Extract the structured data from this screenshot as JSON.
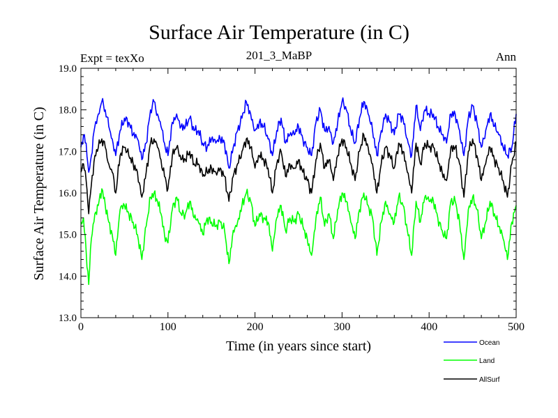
{
  "header": {
    "title": "Surface Air Temperature (in C)",
    "subtitle": "201_3_MaBP",
    "expt_label": "Expt = texXo",
    "season_label": "Ann"
  },
  "chart_data": {
    "type": "line",
    "title": "Surface Air Temperature (in C)",
    "xlabel": "Time (in years since start)",
    "ylabel": "Surface Air Temperature (in C)",
    "xlim": [
      0,
      500
    ],
    "ylim": [
      13.0,
      19.0
    ],
    "xticks": [
      0,
      100,
      200,
      300,
      400,
      500
    ],
    "yticks": [
      13.0,
      14.0,
      15.0,
      16.0,
      17.0,
      18.0,
      19.0
    ],
    "ytick_labels": [
      "13.0",
      "14.0",
      "15.0",
      "16.0",
      "17.0",
      "18.0",
      "19.0"
    ],
    "grid": false,
    "legend_position": "bottom-right",
    "series": [
      {
        "name": "Ocean",
        "color": "#0000ff",
        "x": [
          0,
          3,
          6,
          9,
          12,
          16,
          20,
          24,
          28,
          32,
          36,
          40,
          45,
          50,
          55,
          60,
          65,
          70,
          75,
          80,
          84,
          88,
          92,
          96,
          100,
          105,
          110,
          115,
          120,
          125,
          130,
          135,
          140,
          145,
          150,
          155,
          160,
          165,
          170,
          175,
          180,
          185,
          190,
          195,
          200,
          205,
          210,
          215,
          220,
          225,
          230,
          235,
          240,
          245,
          250,
          255,
          260,
          265,
          270,
          275,
          280,
          285,
          290,
          295,
          300,
          305,
          310,
          315,
          320,
          325,
          330,
          335,
          340,
          345,
          350,
          355,
          360,
          365,
          370,
          375,
          380,
          385,
          390,
          395,
          400,
          405,
          410,
          415,
          420,
          425,
          430,
          435,
          440,
          445,
          450,
          455,
          460,
          465,
          470,
          475,
          480,
          485,
          490,
          495,
          500
        ],
        "values": [
          17.1,
          17.4,
          17.2,
          16.5,
          16.9,
          17.6,
          17.9,
          18.2,
          18.0,
          17.6,
          17.3,
          16.9,
          17.5,
          17.8,
          17.7,
          17.4,
          17.3,
          16.8,
          17.2,
          18.0,
          18.2,
          17.9,
          17.6,
          17.2,
          16.9,
          17.7,
          17.9,
          17.6,
          17.6,
          17.8,
          17.5,
          17.5,
          17.2,
          17.1,
          17.3,
          17.2,
          17.3,
          17.2,
          16.6,
          17.1,
          17.5,
          17.8,
          18.2,
          17.9,
          17.5,
          17.7,
          17.6,
          17.3,
          16.9,
          17.5,
          17.8,
          17.2,
          17.4,
          17.4,
          17.6,
          17.3,
          17.1,
          16.9,
          17.7,
          18.0,
          17.5,
          17.6,
          17.2,
          17.7,
          18.2,
          18.0,
          17.5,
          17.2,
          17.8,
          18.2,
          17.9,
          17.5,
          16.9,
          17.5,
          17.9,
          17.7,
          17.4,
          17.9,
          17.8,
          17.3,
          16.9,
          18.1,
          17.5,
          18.0,
          17.9,
          17.9,
          17.6,
          17.4,
          17.2,
          17.9,
          17.9,
          17.5,
          16.9,
          17.8,
          18.1,
          17.7,
          17.1,
          17.5,
          17.9,
          17.6,
          17.4,
          17.1,
          16.9,
          17.1,
          17.9
        ]
      },
      {
        "name": "Land",
        "color": "#00ff00",
        "x": [
          0,
          3,
          6,
          9,
          12,
          16,
          20,
          24,
          28,
          32,
          36,
          40,
          45,
          50,
          55,
          60,
          65,
          70,
          75,
          80,
          84,
          88,
          92,
          96,
          100,
          105,
          110,
          115,
          120,
          125,
          130,
          135,
          140,
          145,
          150,
          155,
          160,
          165,
          170,
          175,
          180,
          185,
          190,
          195,
          200,
          205,
          210,
          215,
          220,
          225,
          230,
          235,
          240,
          245,
          250,
          255,
          260,
          265,
          270,
          275,
          280,
          285,
          290,
          295,
          300,
          305,
          310,
          315,
          320,
          325,
          330,
          335,
          340,
          345,
          350,
          355,
          360,
          365,
          370,
          375,
          380,
          385,
          390,
          395,
          400,
          405,
          410,
          415,
          420,
          425,
          430,
          435,
          440,
          445,
          450,
          455,
          460,
          465,
          470,
          475,
          480,
          485,
          490,
          495,
          500
        ],
        "values": [
          15.3,
          15.4,
          14.6,
          13.8,
          14.9,
          15.5,
          15.7,
          16.1,
          15.7,
          15.3,
          15.0,
          14.5,
          15.6,
          15.7,
          15.5,
          15.3,
          15.0,
          14.4,
          15.2,
          15.9,
          16.0,
          15.8,
          15.5,
          15.0,
          14.8,
          15.6,
          15.9,
          15.5,
          15.5,
          15.8,
          15.4,
          15.3,
          15.0,
          15.4,
          15.3,
          15.2,
          15.3,
          15.1,
          14.3,
          15.1,
          15.3,
          15.7,
          16.0,
          15.8,
          15.2,
          15.5,
          15.4,
          15.3,
          14.6,
          15.4,
          15.7,
          15.1,
          15.4,
          15.3,
          15.5,
          15.2,
          14.9,
          14.5,
          15.4,
          15.9,
          15.2,
          15.5,
          14.9,
          15.6,
          16.0,
          15.8,
          15.3,
          14.9,
          15.6,
          16.0,
          15.7,
          15.4,
          14.5,
          15.3,
          15.8,
          15.5,
          15.3,
          15.9,
          15.7,
          15.1,
          14.5,
          15.8,
          15.3,
          15.9,
          15.8,
          15.8,
          15.4,
          15.1,
          14.9,
          15.8,
          15.8,
          15.3,
          14.4,
          15.6,
          15.9,
          15.6,
          14.9,
          15.3,
          15.8,
          15.5,
          15.2,
          14.9,
          14.4,
          15.3,
          15.7
        ]
      },
      {
        "name": "AllSurf",
        "color": "#000000",
        "x": [
          0,
          3,
          6,
          9,
          12,
          16,
          20,
          24,
          28,
          32,
          36,
          40,
          45,
          50,
          55,
          60,
          65,
          70,
          75,
          80,
          84,
          88,
          92,
          96,
          100,
          105,
          110,
          115,
          120,
          125,
          130,
          135,
          140,
          145,
          150,
          155,
          160,
          165,
          170,
          175,
          180,
          185,
          190,
          195,
          200,
          205,
          210,
          215,
          220,
          225,
          230,
          235,
          240,
          245,
          250,
          255,
          260,
          265,
          270,
          275,
          280,
          285,
          290,
          295,
          300,
          305,
          310,
          315,
          320,
          325,
          330,
          335,
          340,
          345,
          350,
          355,
          360,
          365,
          370,
          375,
          380,
          385,
          390,
          395,
          400,
          405,
          410,
          415,
          420,
          425,
          430,
          435,
          440,
          445,
          450,
          455,
          460,
          465,
          470,
          475,
          480,
          485,
          490,
          495,
          500
        ],
        "values": [
          16.5,
          16.7,
          16.3,
          15.5,
          16.2,
          16.9,
          17.1,
          17.3,
          17.1,
          16.7,
          16.5,
          16.0,
          16.9,
          17.1,
          16.9,
          16.7,
          16.5,
          15.9,
          16.5,
          17.2,
          17.3,
          17.1,
          16.8,
          16.4,
          16.1,
          16.9,
          17.1,
          16.8,
          16.8,
          17.0,
          16.7,
          16.7,
          16.4,
          16.5,
          16.6,
          16.5,
          16.6,
          16.4,
          15.8,
          16.4,
          16.7,
          17.0,
          17.3,
          17.1,
          16.6,
          16.9,
          16.8,
          16.6,
          16.0,
          16.7,
          17.0,
          16.4,
          16.7,
          16.6,
          16.8,
          16.5,
          16.3,
          16.0,
          16.8,
          17.2,
          16.6,
          16.8,
          16.3,
          16.9,
          17.3,
          17.1,
          16.7,
          16.3,
          17.0,
          17.4,
          17.1,
          16.7,
          16.0,
          16.7,
          17.1,
          16.9,
          16.6,
          17.2,
          17.0,
          16.5,
          16.0,
          17.2,
          16.7,
          17.2,
          17.1,
          17.1,
          16.8,
          16.5,
          16.3,
          17.1,
          17.1,
          16.7,
          15.9,
          17.0,
          17.3,
          16.9,
          16.3,
          16.7,
          17.1,
          16.8,
          16.6,
          16.3,
          15.9,
          16.7,
          17.2
        ]
      }
    ]
  }
}
